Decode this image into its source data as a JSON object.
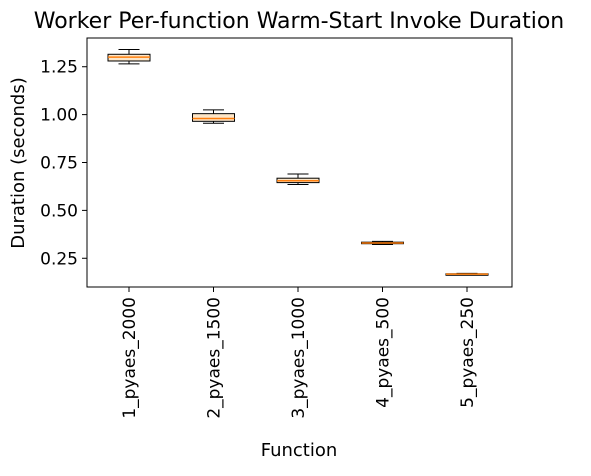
{
  "chart_data": {
    "type": "box",
    "title": "Worker Per-function Warm-Start Invoke Duration",
    "xlabel": "Function",
    "ylabel": "Duration (seconds)",
    "categories": [
      "1_pyaes_2000",
      "2_pyaes_1500",
      "3_pyaes_1000",
      "4_pyaes_500",
      "5_pyaes_250"
    ],
    "ylim": [
      0.1,
      1.4
    ],
    "yticks": [
      0.25,
      0.5,
      0.75,
      1.0,
      1.25
    ],
    "ytick_labels": [
      "0.25",
      "0.50",
      "0.75",
      "1.00",
      "1.25"
    ],
    "boxes": [
      {
        "whisker_low": 1.265,
        "q1": 1.28,
        "median": 1.3,
        "q3": 1.315,
        "whisker_high": 1.34
      },
      {
        "whisker_low": 0.955,
        "q1": 0.965,
        "median": 0.98,
        "q3": 1.005,
        "whisker_high": 1.025
      },
      {
        "whisker_low": 0.635,
        "q1": 0.645,
        "median": 0.655,
        "q3": 0.668,
        "whisker_high": 0.69
      },
      {
        "whisker_low": 0.322,
        "q1": 0.326,
        "median": 0.33,
        "q3": 0.334,
        "whisker_high": 0.338
      },
      {
        "whisker_low": 0.163,
        "q1": 0.165,
        "median": 0.167,
        "q3": 0.169,
        "whisker_high": 0.171
      }
    ],
    "grid": false,
    "legend": false,
    "colors": {
      "box_face": "#fde6c8",
      "box_edge": "#000000",
      "median": "#ff7f0e",
      "whisker": "#000000"
    }
  }
}
